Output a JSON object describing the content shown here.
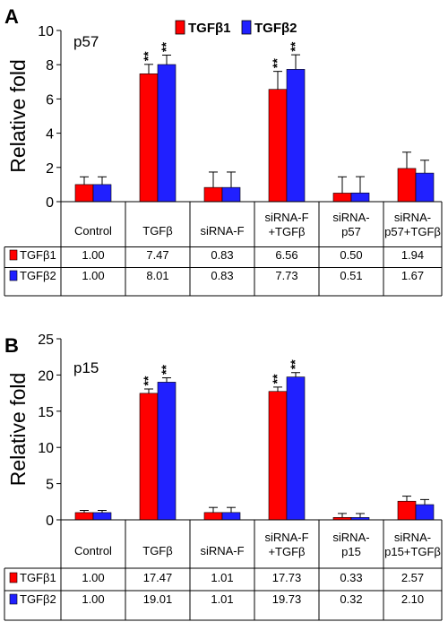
{
  "legend": [
    {
      "label": "TGFβ1",
      "color": "#ff0000"
    },
    {
      "label": "TGFβ2",
      "color": "#2020ff"
    }
  ],
  "chart_data": [
    {
      "type": "bar",
      "panel_label": "A",
      "gene": "p57",
      "ylabel": "Relative fold",
      "ylim": [
        0,
        10
      ],
      "yticks": [
        0,
        2,
        4,
        6,
        8,
        10
      ],
      "categories": [
        [
          "Control"
        ],
        [
          "TGFβ"
        ],
        [
          "siRNA-F"
        ],
        [
          "siRNA-F",
          "+TGFβ"
        ],
        [
          "siRNA-",
          "p57"
        ],
        [
          "siRNA-",
          "p57+TGFβ"
        ]
      ],
      "series": [
        {
          "name": "TGFβ1",
          "values": [
            1.0,
            7.47,
            0.83,
            6.56,
            0.5,
            1.94
          ],
          "errors": [
            0.45,
            0.55,
            0.9,
            1.05,
            0.95,
            0.95
          ],
          "table": [
            "1.00",
            "7.47",
            "0.83",
            "6.56",
            "0.50",
            "1.94"
          ]
        },
        {
          "name": "TGFβ2",
          "values": [
            1.0,
            8.01,
            0.83,
            7.73,
            0.51,
            1.67
          ],
          "errors": [
            0.45,
            0.55,
            0.9,
            0.85,
            0.95,
            0.75
          ],
          "table": [
            "1.00",
            "8.01",
            "0.83",
            "7.73",
            "0.51",
            "1.67"
          ]
        }
      ],
      "significance": [
        {
          "category": 1,
          "series": 0,
          "mark": "**"
        },
        {
          "category": 1,
          "series": 1,
          "mark": "**"
        },
        {
          "category": 3,
          "series": 0,
          "mark": "**"
        },
        {
          "category": 3,
          "series": 1,
          "mark": "**"
        }
      ]
    },
    {
      "type": "bar",
      "panel_label": "B",
      "gene": "p15",
      "ylabel": "Relative fold",
      "ylim": [
        0,
        25
      ],
      "yticks": [
        0,
        5,
        10,
        15,
        20,
        25
      ],
      "categories": [
        [
          "Control"
        ],
        [
          "TGFβ"
        ],
        [
          "siRNA-F"
        ],
        [
          "siRNA-F",
          "+TGFβ"
        ],
        [
          "siRNA-",
          "p15"
        ],
        [
          "siRNA-",
          "p15+TGFβ"
        ]
      ],
      "series": [
        {
          "name": "TGFβ1",
          "values": [
            1.0,
            17.47,
            1.01,
            17.73,
            0.33,
            2.57
          ],
          "errors": [
            0.3,
            0.6,
            0.7,
            0.6,
            0.55,
            0.7
          ],
          "table": [
            "1.00",
            "17.47",
            "1.01",
            "17.73",
            "0.33",
            "2.57"
          ]
        },
        {
          "name": "TGFβ2",
          "values": [
            1.0,
            19.01,
            1.01,
            19.73,
            0.32,
            2.1
          ],
          "errors": [
            0.3,
            0.6,
            0.7,
            0.6,
            0.55,
            0.7
          ],
          "table": [
            "1.00",
            "19.01",
            "1.01",
            "19.73",
            "0.32",
            "2.10"
          ]
        }
      ],
      "significance": [
        {
          "category": 1,
          "series": 0,
          "mark": "**"
        },
        {
          "category": 1,
          "series": 1,
          "mark": "**"
        },
        {
          "category": 3,
          "series": 0,
          "mark": "**"
        },
        {
          "category": 3,
          "series": 1,
          "mark": "**"
        }
      ]
    }
  ]
}
